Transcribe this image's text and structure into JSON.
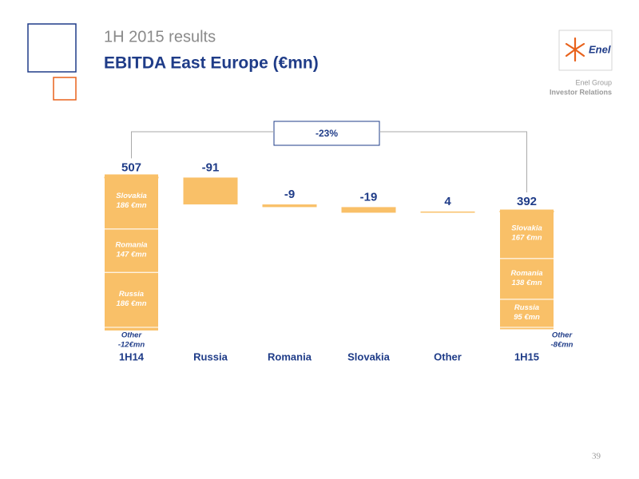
{
  "header": {
    "title": "1H 2015 results",
    "subtitle": "EBITDA East Europe (€mn)",
    "logo_text": "Enel",
    "group": "Enel Group",
    "unit_name": "Investor Relations",
    "page": "39"
  },
  "chart_data": {
    "type": "waterfall",
    "categories": [
      "1H14",
      "Russia",
      "Romania",
      "Slovakia",
      "Other",
      "1H15"
    ],
    "values": [
      507,
      -91,
      -9,
      -19,
      4,
      392
    ],
    "is_total": [
      true,
      false,
      false,
      false,
      false,
      true
    ],
    "color": "#f9c068",
    "label_color": "#1f3c88",
    "annotation": "-23%",
    "breakdown": [
      {
        "name": "Russia",
        "values": [
          186,
          95
        ],
        "value_labels": [
          "186 €mn",
          "95 €mn"
        ]
      },
      {
        "name": "Romania",
        "values": [
          147,
          138
        ],
        "value_labels": [
          "147 €mn",
          "138 €mn"
        ]
      },
      {
        "name": "Slovakia",
        "values": [
          186,
          167
        ],
        "value_labels": [
          "186 €mn",
          "167 €mn"
        ]
      },
      {
        "name": "Other",
        "values": [
          -12,
          -8
        ],
        "value_labels": [
          "-12€mn",
          "-8€mn"
        ]
      }
    ]
  }
}
